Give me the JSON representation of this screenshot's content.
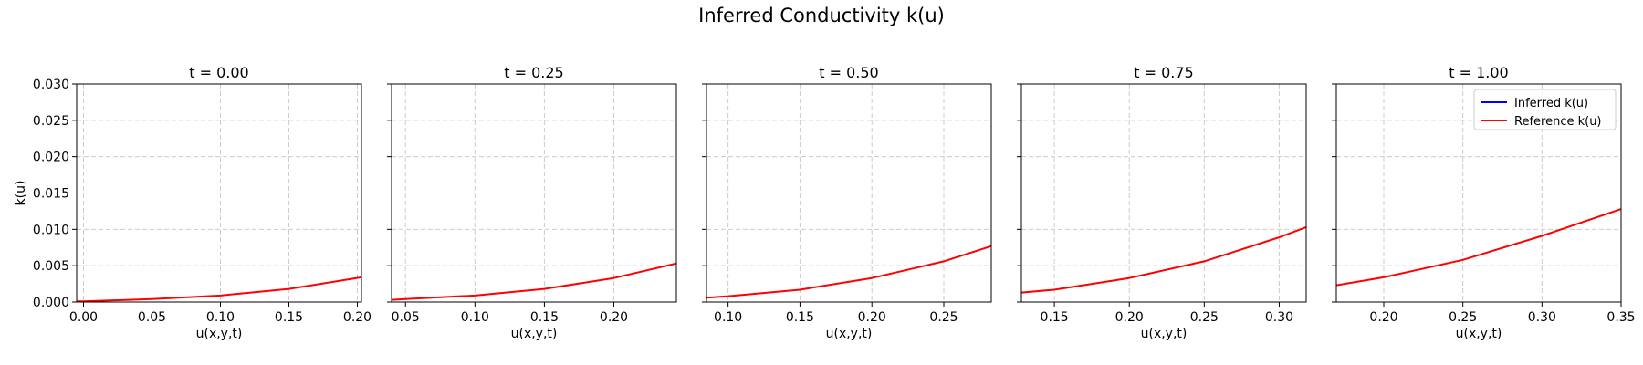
{
  "figure": {
    "suptitle": "Inferred Conductivity k(u)"
  },
  "legend": {
    "placement": "top-right of last panel",
    "entries": [
      {
        "label": "Inferred k(u)",
        "color": "#0000ff"
      },
      {
        "label": "Reference k(u)",
        "color": "#ff0000"
      }
    ]
  },
  "chart_data": [
    {
      "type": "line",
      "title": "t = 0.00",
      "xlabel": "u(x,y,t)",
      "ylabel": "k(u)",
      "xlim": [
        -0.005,
        0.203
      ],
      "ylim": [
        0,
        0.03
      ],
      "xticks": [
        "0.00",
        "0.05",
        "0.10",
        "0.15",
        "0.20"
      ],
      "yticks": [
        "0.000",
        "0.005",
        "0.010",
        "0.015",
        "0.020",
        "0.025",
        "0.030"
      ],
      "grid": true,
      "series": [
        {
          "name": "Reference k(u)",
          "color": "#ff0000",
          "x": [
            -0.005,
            0.0,
            0.05,
            0.1,
            0.15,
            0.203
          ],
          "y": [
            0.0001,
            0.0001,
            0.0004,
            0.0009,
            0.0018,
            0.0034
          ]
        }
      ]
    },
    {
      "type": "line",
      "title": "t = 0.25",
      "xlabel": "u(x,y,t)",
      "ylabel": "",
      "xlim": [
        0.04,
        0.245
      ],
      "ylim": [
        0,
        0.03
      ],
      "xticks": [
        "0.05",
        "0.10",
        "0.15",
        "0.20"
      ],
      "yticks": [
        "",
        "",
        "",
        "",
        "",
        "",
        ""
      ],
      "grid": true,
      "series": [
        {
          "name": "Reference k(u)",
          "color": "#ff0000",
          "x": [
            0.04,
            0.05,
            0.1,
            0.15,
            0.2,
            0.245
          ],
          "y": [
            0.0003,
            0.0004,
            0.0009,
            0.0018,
            0.0033,
            0.0053
          ]
        }
      ]
    },
    {
      "type": "line",
      "title": "t = 0.50",
      "xlabel": "u(x,y,t)",
      "ylabel": "",
      "xlim": [
        0.085,
        0.283
      ],
      "ylim": [
        0,
        0.03
      ],
      "xticks": [
        "0.10",
        "0.15",
        "0.20",
        "0.25"
      ],
      "yticks": [
        "",
        "",
        "",
        "",
        "",
        "",
        ""
      ],
      "grid": true,
      "series": [
        {
          "name": "Reference k(u)",
          "color": "#ff0000",
          "x": [
            0.085,
            0.1,
            0.15,
            0.2,
            0.25,
            0.283
          ],
          "y": [
            0.0006,
            0.0008,
            0.0017,
            0.0033,
            0.0056,
            0.0077
          ]
        }
      ]
    },
    {
      "type": "line",
      "title": "t = 0.75",
      "xlabel": "u(x,y,t)",
      "ylabel": "",
      "xlim": [
        0.128,
        0.318
      ],
      "ylim": [
        0,
        0.03
      ],
      "xticks": [
        "0.15",
        "0.20",
        "0.25",
        "0.30"
      ],
      "yticks": [
        "",
        "",
        "",
        "",
        "",
        "",
        ""
      ],
      "grid": true,
      "series": [
        {
          "name": "Reference k(u)",
          "color": "#ff0000",
          "x": [
            0.128,
            0.15,
            0.2,
            0.25,
            0.3,
            0.318
          ],
          "y": [
            0.0013,
            0.0017,
            0.0033,
            0.0056,
            0.0089,
            0.0103
          ]
        }
      ]
    },
    {
      "type": "line",
      "title": "t = 1.00",
      "xlabel": "u(x,y,t)",
      "ylabel": "",
      "xlim": [
        0.17,
        0.35
      ],
      "ylim": [
        0,
        0.03
      ],
      "xticks": [
        "0.20",
        "0.25",
        "0.30",
        "0.35"
      ],
      "yticks": [
        "",
        "",
        "",
        "",
        "",
        "",
        ""
      ],
      "grid": true,
      "series": [
        {
          "name": "Reference k(u)",
          "color": "#ff0000",
          "x": [
            0.17,
            0.2,
            0.25,
            0.3,
            0.35
          ],
          "y": [
            0.0023,
            0.0034,
            0.0058,
            0.0091,
            0.0128
          ]
        }
      ]
    }
  ]
}
